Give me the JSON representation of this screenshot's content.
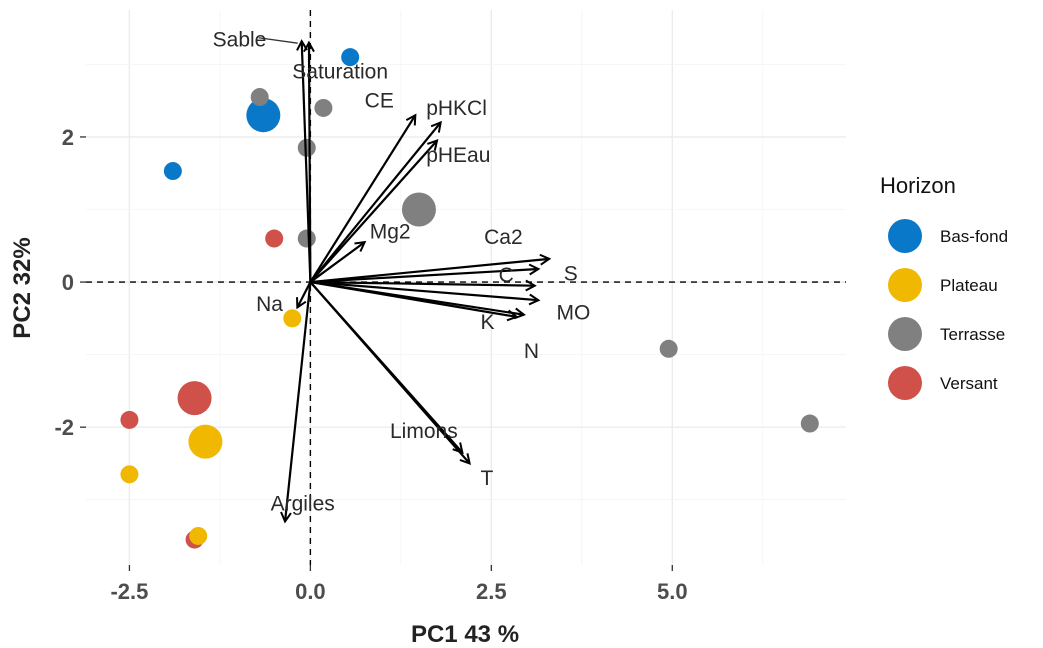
{
  "chart_data": {
    "type": "scatter",
    "subtype": "pca-biplot",
    "title": "",
    "xlabel": "PC1 43 %",
    "ylabel": "PC2 32%",
    "xlim": [
      -3.1,
      7.4
    ],
    "ylim": [
      -3.9,
      3.75
    ],
    "x_ticks": [
      -2.5,
      0.0,
      2.5,
      5.0
    ],
    "x_tick_labels": [
      "-2.5",
      "0.0",
      "2.5",
      "5.0"
    ],
    "y_ticks": [
      -2,
      0,
      2
    ],
    "y_tick_labels": [
      "-2",
      "0",
      "2"
    ],
    "grid": true,
    "reference_lines": [
      "x=0 dashed",
      "y=0 dashed"
    ],
    "legend": {
      "title": "Horizon",
      "position": "right",
      "entries": [
        {
          "label": "Bas-fond",
          "color": "#0a78c8"
        },
        {
          "label": "Plateau",
          "color": "#f0b800"
        },
        {
          "label": "Terrasse",
          "color": "#808080"
        },
        {
          "label": "Versant",
          "color": "#d0504a"
        }
      ]
    },
    "points": [
      {
        "x": 0.55,
        "y": 3.1,
        "group": "Bas-fond",
        "size": "small"
      },
      {
        "x": -0.65,
        "y": 2.3,
        "group": "Bas-fond",
        "size": "large"
      },
      {
        "x": -1.9,
        "y": 1.53,
        "group": "Bas-fond",
        "size": "small"
      },
      {
        "x": -0.7,
        "y": 2.55,
        "group": "Terrasse",
        "size": "small"
      },
      {
        "x": 0.18,
        "y": 2.4,
        "group": "Terrasse",
        "size": "small"
      },
      {
        "x": -0.05,
        "y": 1.85,
        "group": "Terrasse",
        "size": "small"
      },
      {
        "x": 1.5,
        "y": 1.0,
        "group": "Terrasse",
        "size": "large"
      },
      {
        "x": -0.05,
        "y": 0.6,
        "group": "Terrasse",
        "size": "small"
      },
      {
        "x": 4.95,
        "y": -0.92,
        "group": "Terrasse",
        "size": "small"
      },
      {
        "x": 6.9,
        "y": -1.95,
        "group": "Terrasse",
        "size": "small"
      },
      {
        "x": -0.5,
        "y": 0.6,
        "group": "Versant",
        "size": "small"
      },
      {
        "x": -1.6,
        "y": -1.6,
        "group": "Versant",
        "size": "large"
      },
      {
        "x": -2.5,
        "y": -1.9,
        "group": "Versant",
        "size": "small"
      },
      {
        "x": -1.6,
        "y": -3.55,
        "group": "Versant",
        "size": "small"
      },
      {
        "x": -0.25,
        "y": -0.5,
        "group": "Plateau",
        "size": "small"
      },
      {
        "x": -1.45,
        "y": -2.2,
        "group": "Plateau",
        "size": "large"
      },
      {
        "x": -2.5,
        "y": -2.65,
        "group": "Plateau",
        "size": "small"
      },
      {
        "x": -1.55,
        "y": -3.5,
        "group": "Plateau",
        "size": "small"
      }
    ],
    "loadings": [
      {
        "name": "Sable",
        "x": -0.12,
        "y": 3.32,
        "label_x": -1.35,
        "label_y": 3.34,
        "leader": true
      },
      {
        "name": "Saturation",
        "x": -0.02,
        "y": 3.3,
        "label_x": -0.25,
        "label_y": 2.9
      },
      {
        "name": "CE",
        "x": 1.45,
        "y": 2.3,
        "label_x": 0.75,
        "label_y": 2.5
      },
      {
        "name": "pHKCl",
        "x": 1.8,
        "y": 2.2,
        "label_x": 1.6,
        "label_y": 2.4
      },
      {
        "name": "pHEau",
        "x": 1.75,
        "y": 1.95,
        "label_x": 1.6,
        "label_y": 1.75
      },
      {
        "name": "Mg2",
        "x": 0.75,
        "y": 0.55,
        "label_x": 0.82,
        "label_y": 0.7
      },
      {
        "name": "Ca2",
        "x": 3.3,
        "y": 0.32,
        "label_x": 2.4,
        "label_y": 0.62
      },
      {
        "name": "S",
        "x": 3.15,
        "y": 0.18,
        "label_x": 3.5,
        "label_y": 0.12
      },
      {
        "name": "C",
        "x": 3.1,
        "y": -0.05,
        "label_x": 2.6,
        "label_y": 0.1
      },
      {
        "name": "MO",
        "x": 3.15,
        "y": -0.25,
        "label_x": 3.4,
        "label_y": -0.42
      },
      {
        "name": "K",
        "x": 2.85,
        "y": -0.48,
        "label_x": 2.35,
        "label_y": -0.55
      },
      {
        "name": "N",
        "x": 2.95,
        "y": -0.45,
        "label_x": 2.95,
        "label_y": -0.95
      },
      {
        "name": "Na",
        "x": -0.18,
        "y": -0.35,
        "label_x": -0.75,
        "label_y": -0.3
      },
      {
        "name": "Limons",
        "x": 2.1,
        "y": -2.35,
        "label_x": 1.1,
        "label_y": -2.05
      },
      {
        "name": "T",
        "x": 2.2,
        "y": -2.5,
        "label_x": 2.35,
        "label_y": -2.7
      },
      {
        "name": "Argiles",
        "x": -0.35,
        "y": -3.3,
        "label_x": -0.55,
        "label_y": -3.05
      }
    ]
  }
}
